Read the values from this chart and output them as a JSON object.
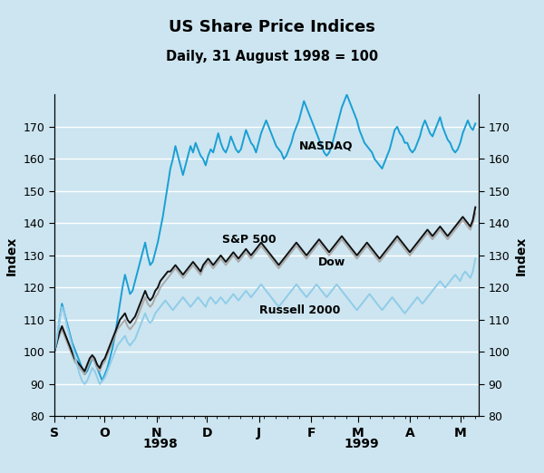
{
  "title": "US Share Price Indices",
  "subtitle": "Daily, 31 August 1998 = 100",
  "ylabel_left": "Index",
  "ylabel_right": "Index",
  "background_color": "#cce5f0",
  "plot_bg_color": "#cce5f0",
  "ylim": [
    80,
    180
  ],
  "yticks": [
    80,
    90,
    100,
    110,
    120,
    130,
    140,
    150,
    160,
    170
  ],
  "grid_color": "#ffffff",
  "colors": {
    "NASDAQ": "#1a9fd4",
    "SP500": "#aaaaaa",
    "Dow": "#111111",
    "Russell2000": "#90cce8"
  },
  "linewidths": {
    "NASDAQ": 1.4,
    "SP500": 1.4,
    "Dow": 1.4,
    "Russell2000": 1.4
  },
  "months": [
    [
      1998,
      9,
      "S"
    ],
    [
      1998,
      10,
      "O"
    ],
    [
      1998,
      11,
      "N"
    ],
    [
      1998,
      12,
      "D"
    ],
    [
      1999,
      1,
      "J"
    ],
    [
      1999,
      2,
      "F"
    ],
    [
      1999,
      3,
      "M"
    ],
    [
      1999,
      4,
      "A"
    ],
    [
      1999,
      5,
      "M"
    ]
  ],
  "year_labels": [
    {
      "text": "1998",
      "month": 10,
      "year": 1998
    },
    {
      "text": "1999",
      "month": 3,
      "year": 1999
    }
  ],
  "NASDAQ": [
    100,
    103,
    110,
    115,
    112,
    109,
    106,
    103,
    101,
    99,
    97,
    95,
    93,
    94,
    96,
    98,
    97,
    95,
    93,
    91,
    93,
    95,
    98,
    101,
    105,
    110,
    115,
    120,
    124,
    121,
    118,
    119,
    122,
    125,
    128,
    131,
    134,
    130,
    127,
    128,
    131,
    134,
    138,
    142,
    147,
    152,
    157,
    160,
    164,
    161,
    158,
    155,
    158,
    161,
    164,
    162,
    165,
    163,
    161,
    160,
    158,
    161,
    163,
    162,
    165,
    168,
    165,
    163,
    162,
    164,
    167,
    165,
    163,
    162,
    163,
    166,
    169,
    167,
    165,
    164,
    162,
    165,
    168,
    170,
    172,
    170,
    168,
    166,
    164,
    163,
    162,
    160,
    161,
    163,
    165,
    168,
    170,
    172,
    175,
    178,
    176,
    174,
    172,
    170,
    168,
    166,
    164,
    162,
    161,
    162,
    164,
    167,
    170,
    173,
    176,
    178,
    180,
    178,
    176,
    174,
    172,
    169,
    167,
    165,
    164,
    163,
    162,
    160,
    159,
    158,
    157,
    159,
    161,
    163,
    166,
    169,
    170,
    168,
    167,
    165,
    165,
    163,
    162,
    163,
    165,
    167,
    170,
    172,
    170,
    168,
    167,
    169,
    171,
    173,
    170,
    168,
    166,
    165,
    163,
    162,
    163,
    165,
    168,
    170,
    172,
    170,
    169,
    171
  ],
  "SP500": [
    100,
    103,
    105,
    107,
    105,
    103,
    101,
    99,
    97,
    96,
    95,
    94,
    93,
    95,
    97,
    98,
    97,
    95,
    94,
    96,
    97,
    99,
    101,
    103,
    105,
    107,
    108,
    109,
    110,
    108,
    107,
    108,
    109,
    111,
    113,
    115,
    117,
    115,
    114,
    115,
    117,
    118,
    120,
    121,
    122,
    123,
    124,
    125,
    126,
    125,
    124,
    123,
    124,
    125,
    126,
    127,
    126,
    125,
    124,
    126,
    127,
    128,
    127,
    126,
    127,
    128,
    129,
    128,
    127,
    128,
    129,
    130,
    129,
    128,
    129,
    130,
    131,
    130,
    129,
    130,
    131,
    132,
    133,
    132,
    131,
    130,
    129,
    128,
    127,
    126,
    127,
    128,
    129,
    130,
    131,
    132,
    133,
    132,
    131,
    130,
    129,
    130,
    131,
    132,
    133,
    134,
    133,
    132,
    131,
    130,
    131,
    132,
    133,
    134,
    135,
    134,
    133,
    132,
    131,
    130,
    129,
    130,
    131,
    132,
    133,
    132,
    131,
    130,
    129,
    128,
    129,
    130,
    131,
    132,
    133,
    134,
    135,
    134,
    133,
    132,
    131,
    130,
    131,
    132,
    133,
    134,
    135,
    136,
    137,
    136,
    135,
    136,
    137,
    138,
    137,
    136,
    135,
    136,
    137,
    138,
    139,
    140,
    141,
    140,
    139,
    138,
    140,
    143
  ],
  "Dow": [
    100,
    103,
    106,
    108,
    106,
    104,
    102,
    100,
    98,
    97,
    96,
    95,
    94,
    96,
    98,
    99,
    98,
    96,
    95,
    97,
    98,
    100,
    102,
    104,
    106,
    108,
    110,
    111,
    112,
    110,
    109,
    110,
    111,
    113,
    115,
    117,
    119,
    117,
    116,
    117,
    119,
    120,
    122,
    123,
    124,
    125,
    125,
    126,
    127,
    126,
    125,
    124,
    125,
    126,
    127,
    128,
    127,
    126,
    125,
    127,
    128,
    129,
    128,
    127,
    128,
    129,
    130,
    129,
    128,
    129,
    130,
    131,
    130,
    129,
    130,
    131,
    132,
    131,
    130,
    131,
    132,
    133,
    134,
    133,
    132,
    131,
    130,
    129,
    128,
    127,
    128,
    129,
    130,
    131,
    132,
    133,
    134,
    133,
    132,
    131,
    130,
    131,
    132,
    133,
    134,
    135,
    134,
    133,
    132,
    131,
    132,
    133,
    134,
    135,
    136,
    135,
    134,
    133,
    132,
    131,
    130,
    131,
    132,
    133,
    134,
    133,
    132,
    131,
    130,
    129,
    130,
    131,
    132,
    133,
    134,
    135,
    136,
    135,
    134,
    133,
    132,
    131,
    132,
    133,
    134,
    135,
    136,
    137,
    138,
    137,
    136,
    137,
    138,
    139,
    138,
    137,
    136,
    137,
    138,
    139,
    140,
    141,
    142,
    141,
    140,
    139,
    141,
    145
  ],
  "Russell2000": [
    100,
    104,
    110,
    114,
    112,
    108,
    105,
    102,
    99,
    96,
    93,
    91,
    90,
    91,
    93,
    95,
    94,
    92,
    90,
    91,
    92,
    94,
    96,
    98,
    100,
    102,
    103,
    104,
    105,
    103,
    102,
    103,
    104,
    106,
    108,
    110,
    112,
    110,
    109,
    110,
    112,
    113,
    114,
    115,
    116,
    115,
    114,
    113,
    114,
    115,
    116,
    117,
    116,
    115,
    114,
    115,
    116,
    117,
    116,
    115,
    114,
    116,
    117,
    116,
    115,
    116,
    117,
    116,
    115,
    116,
    117,
    118,
    117,
    116,
    117,
    118,
    119,
    118,
    117,
    118,
    119,
    120,
    121,
    120,
    119,
    118,
    117,
    116,
    115,
    114,
    115,
    116,
    117,
    118,
    119,
    120,
    121,
    120,
    119,
    118,
    117,
    118,
    119,
    120,
    121,
    120,
    119,
    118,
    117,
    118,
    119,
    120,
    121,
    120,
    119,
    118,
    117,
    116,
    115,
    114,
    113,
    114,
    115,
    116,
    117,
    118,
    117,
    116,
    115,
    114,
    113,
    114,
    115,
    116,
    117,
    116,
    115,
    114,
    113,
    112,
    113,
    114,
    115,
    116,
    117,
    116,
    115,
    116,
    117,
    118,
    119,
    120,
    121,
    122,
    121,
    120,
    121,
    122,
    123,
    124,
    123,
    122,
    124,
    125,
    124,
    123,
    125,
    129
  ]
}
